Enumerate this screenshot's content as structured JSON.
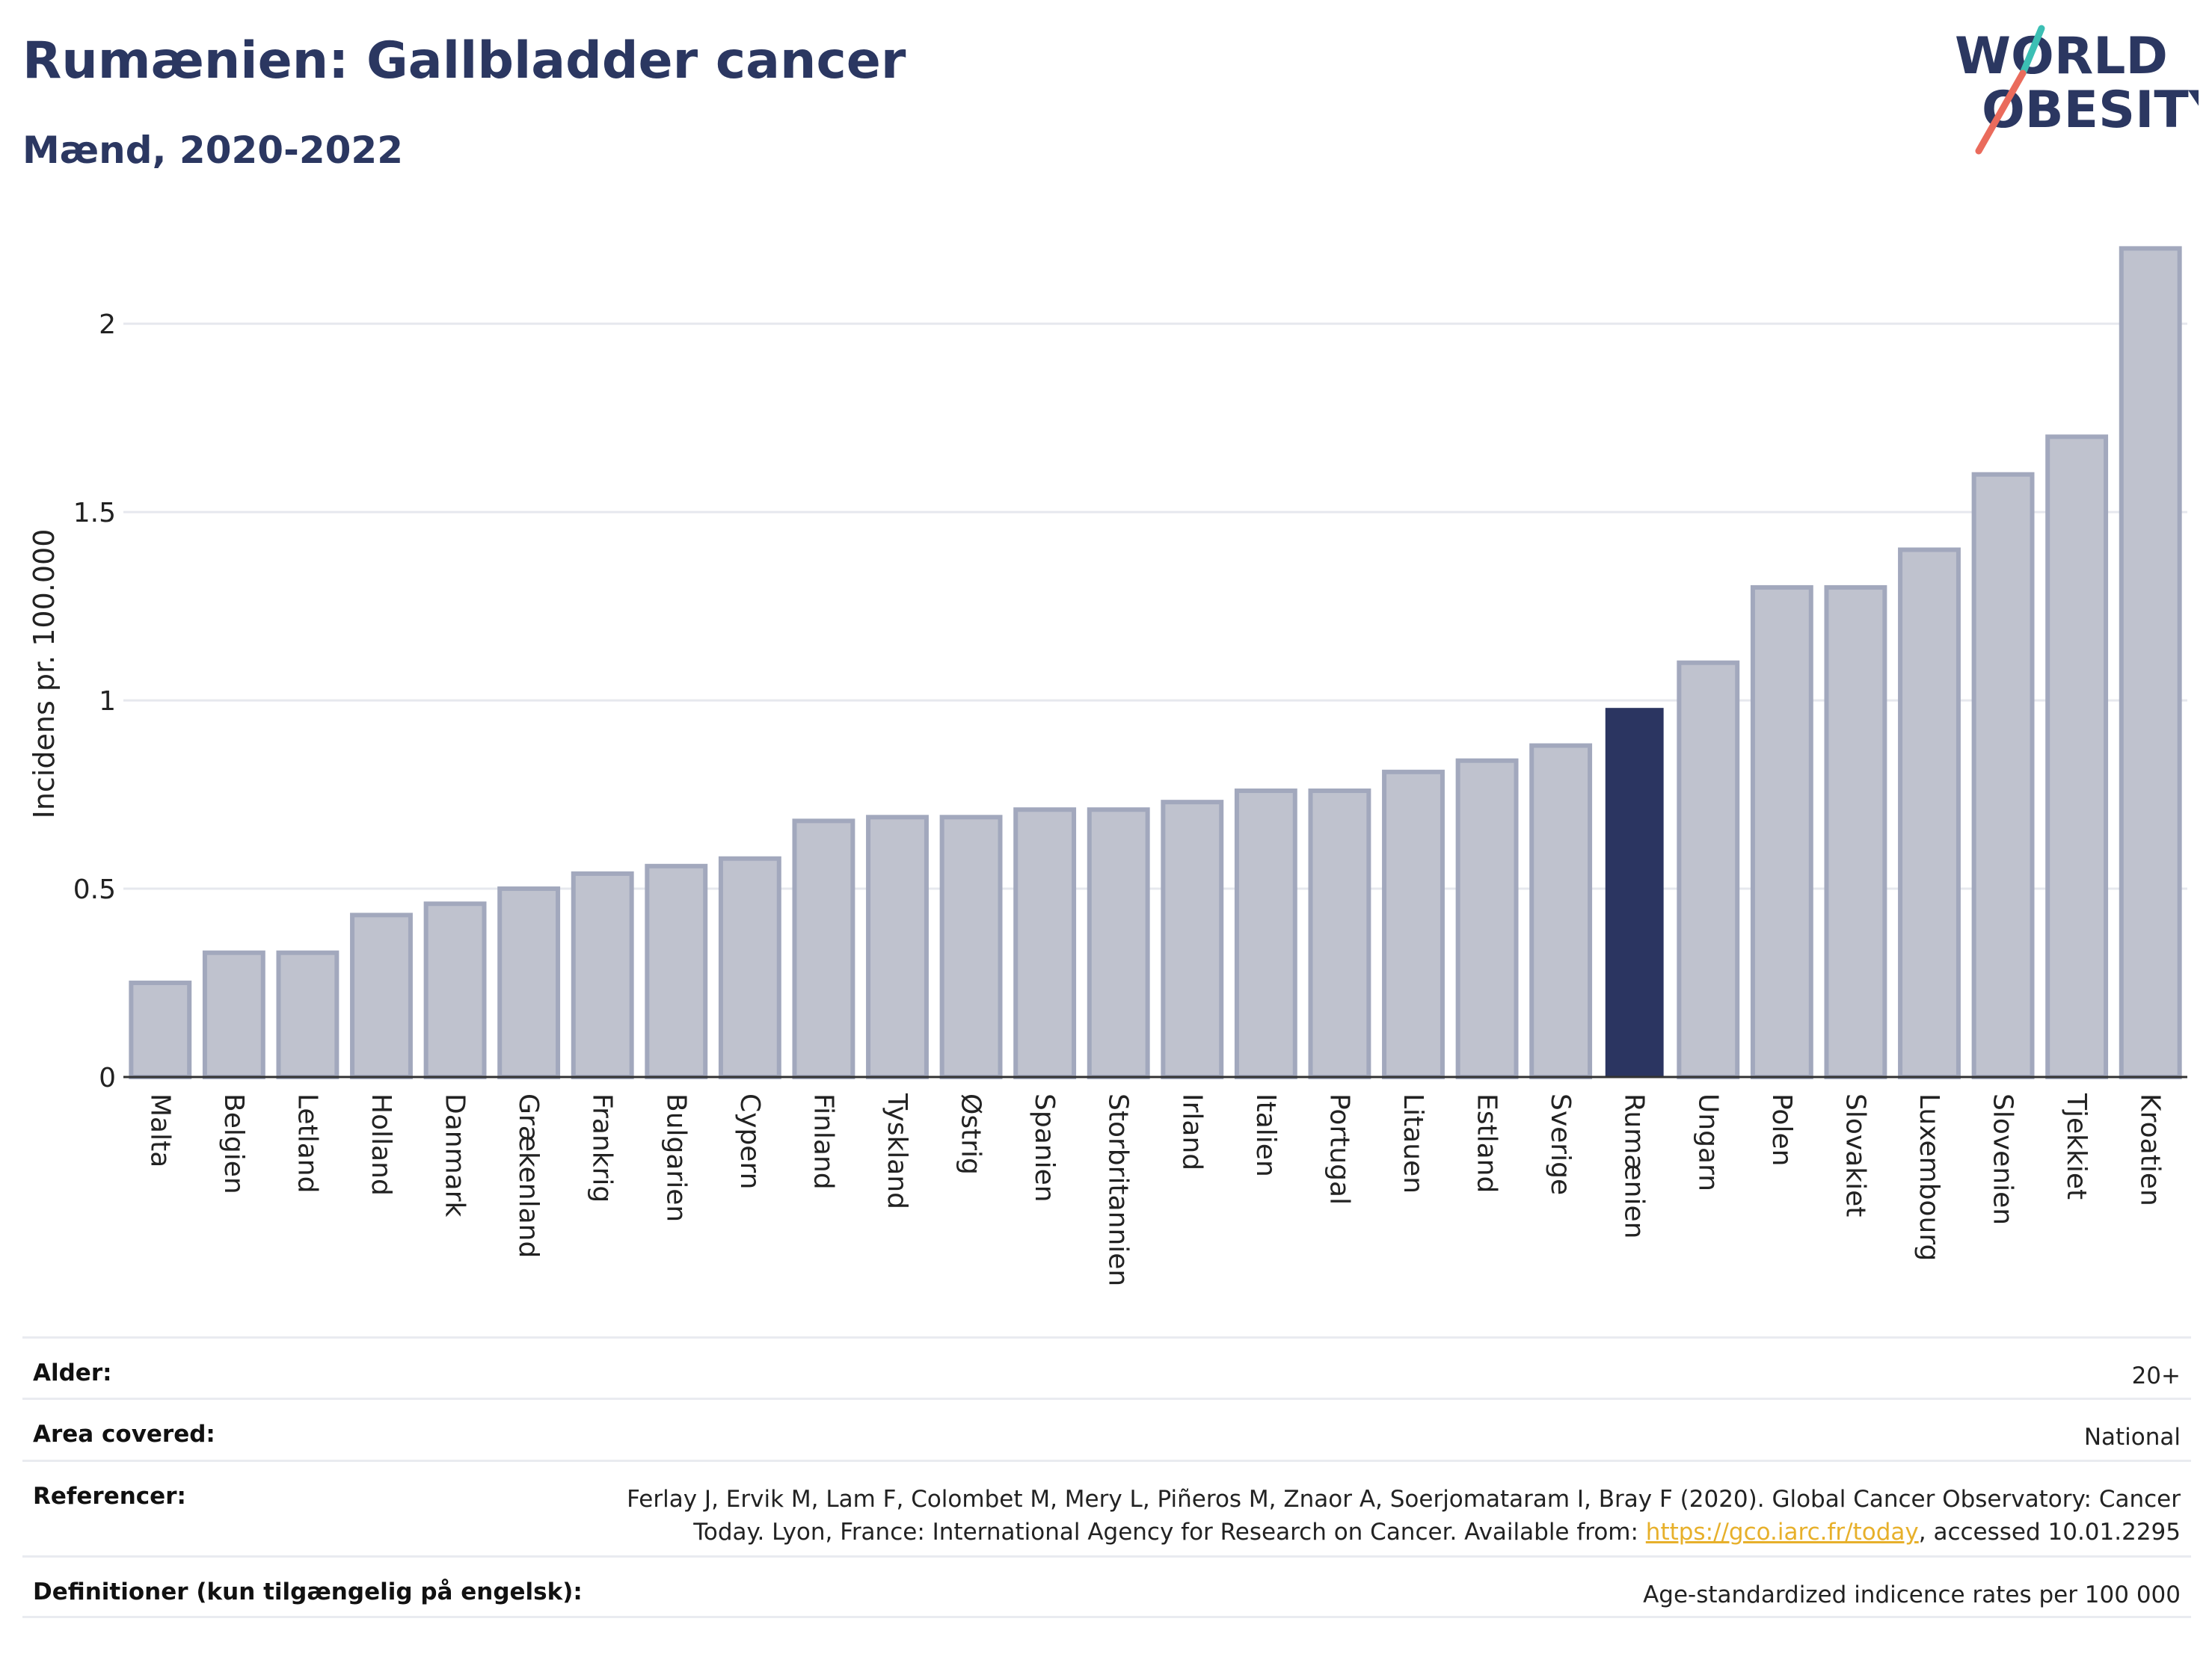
{
  "header": {
    "title": "Rumænien: Gallbladder cancer",
    "subtitle": "Mænd, 2020-2022"
  },
  "logo": {
    "line1": "WORLD",
    "line2": "OBESITY"
  },
  "colors": {
    "highlight": "#2b3561",
    "bar": "#bfc2ce",
    "bar_edge": "#a2a8bd",
    "title": "#2b3761",
    "grid": "#e6e8ee",
    "link": "#e7b02b"
  },
  "chart_data": {
    "type": "bar",
    "ylabel": "Incidens pr. 100.000",
    "xlabel": "",
    "ylim": [
      0,
      2.3
    ],
    "yticks": [
      0,
      0.5,
      1,
      1.5,
      2
    ],
    "ytick_labels": [
      "0",
      "0.5",
      "1",
      "1.5",
      "2"
    ],
    "grid": true,
    "highlight": "Rumænien",
    "categories": [
      "Malta",
      "Belgien",
      "Letland",
      "Holland",
      "Danmark",
      "Grækenland",
      "Frankrig",
      "Bulgarien",
      "Cypern",
      "Finland",
      "Tyskland",
      "Østrig",
      "Spanien",
      "Storbritannien",
      "Irland",
      "Italien",
      "Portugal",
      "Litauen",
      "Estland",
      "Sverige",
      "Rumænien",
      "Ungarn",
      "Polen",
      "Slovakiet",
      "Luxembourg",
      "Slovenien",
      "Tjekkiet",
      "Kroatien"
    ],
    "values": [
      0.25,
      0.33,
      0.33,
      0.43,
      0.46,
      0.5,
      0.54,
      0.56,
      0.58,
      0.68,
      0.69,
      0.69,
      0.71,
      0.71,
      0.73,
      0.76,
      0.76,
      0.81,
      0.84,
      0.88,
      0.98,
      1.1,
      1.3,
      1.3,
      1.4,
      1.6,
      1.7,
      2.2
    ]
  },
  "meta": {
    "age": {
      "label": "Alder:",
      "value": "20+"
    },
    "area": {
      "label": "Area covered:",
      "value": "National"
    },
    "references": {
      "label": "Referencer:",
      "text_before": "Ferlay J, Ervik M, Lam F, Colombet M, Mery L, Piñeros M, Znaor A, Soerjomataram I, Bray F (2020). Global Cancer Observatory: Cancer Today. Lyon, France: International Agency for Research on Cancer. Available from: ",
      "link": "https://gco.iarc.fr/today",
      "text_after": ", accessed 10.01.2295"
    },
    "definitions": {
      "label": "Definitioner (kun tilgængelig på engelsk):",
      "value": "Age-standardized indicence rates per 100 000"
    }
  }
}
